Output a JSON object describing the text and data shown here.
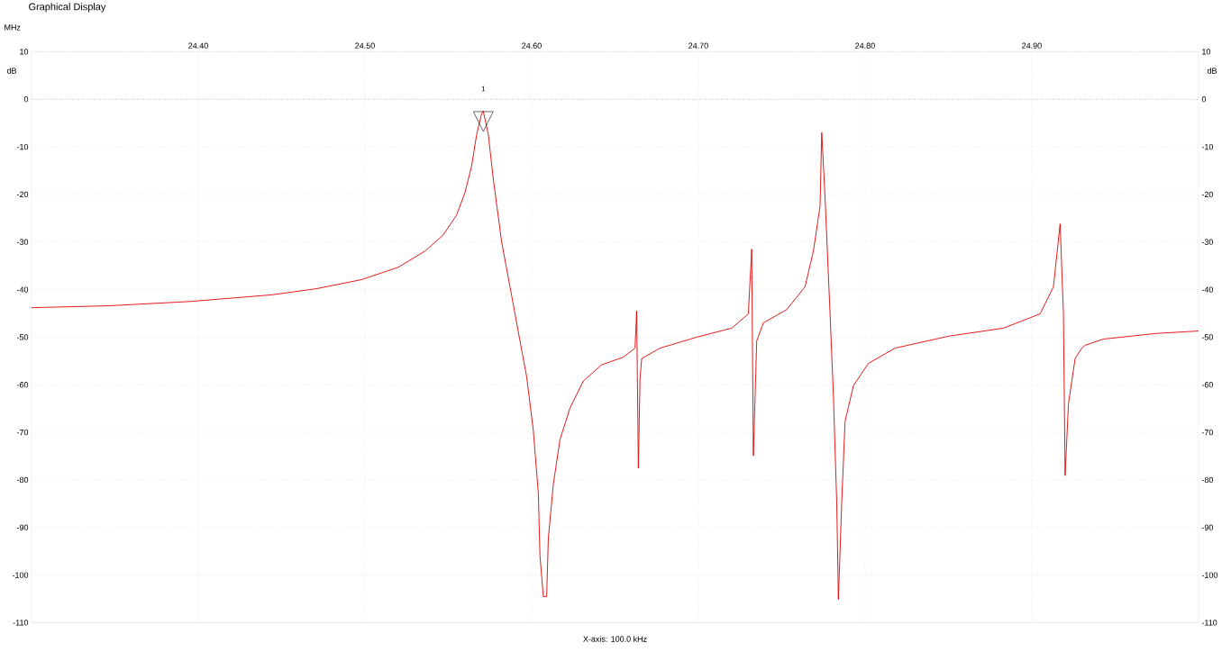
{
  "chart_data": {
    "type": "line",
    "title": "Graphical Display",
    "xlabel": "MHz",
    "ylabel": "dB",
    "y2label": "dB",
    "x": [
      24.3,
      24.346,
      24.395,
      24.444,
      24.471,
      24.498,
      24.52,
      24.536,
      24.547,
      24.555,
      24.56,
      24.564,
      24.567,
      24.57,
      24.571,
      24.574,
      24.577,
      24.582,
      24.588,
      24.593,
      24.597,
      24.601,
      24.604,
      24.605,
      24.607,
      24.609,
      24.61,
      24.613,
      24.617,
      24.623,
      24.631,
      24.642,
      24.655,
      24.662,
      24.663,
      24.664,
      24.665,
      24.666,
      24.677,
      24.699,
      24.72,
      24.73,
      24.732,
      24.733,
      24.735,
      24.739,
      24.753,
      24.764,
      24.769,
      24.773,
      24.774,
      24.776,
      24.779,
      24.781,
      24.783,
      24.784,
      24.786,
      24.788,
      24.793,
      24.802,
      24.818,
      24.85,
      24.883,
      24.905,
      24.913,
      24.917,
      24.919,
      24.92,
      24.922,
      24.926,
      24.93,
      24.932,
      24.943,
      24.975,
      25.0
    ],
    "series": [
      {
        "color": "#e00000",
        "values": [
          -43.8,
          -43.4,
          -42.5,
          -41.1,
          -39.8,
          -37.9,
          -35.3,
          -31.9,
          -28.5,
          -24.3,
          -19.6,
          -14.0,
          -7.4,
          -3.0,
          -2.5,
          -7.4,
          -16.8,
          -30.0,
          -41.3,
          -50.8,
          -58.3,
          -69.6,
          -82.8,
          -96.0,
          -104.5,
          -104.5,
          -92.3,
          -80.9,
          -71.5,
          -64.9,
          -59.2,
          -55.8,
          -54.2,
          -52.3,
          -44.5,
          -77.5,
          -58.7,
          -54.5,
          -52.3,
          -50.0,
          -48.1,
          -45.1,
          -31.5,
          -74.9,
          -50.8,
          -47.0,
          -44.2,
          -39.4,
          -31.9,
          -22.5,
          -7.0,
          -20.6,
          -45.1,
          -62.1,
          -84.7,
          -105.1,
          -84.7,
          -67.7,
          -60.2,
          -55.5,
          -52.3,
          -49.8,
          -48.1,
          -45.1,
          -39.4,
          -26.2,
          -45.1,
          -79.1,
          -64.0,
          -54.5,
          -52.3,
          -51.7,
          -50.4,
          -49.2,
          -48.7
        ]
      }
    ],
    "xlim": [
      24.3,
      25.0
    ],
    "xticks": [
      {
        "value": 24.4,
        "label": "24.40"
      },
      {
        "value": 24.5,
        "label": "24.50"
      },
      {
        "value": 24.6,
        "label": "24.60"
      },
      {
        "value": 24.7,
        "label": "24.70"
      },
      {
        "value": 24.8,
        "label": "24.80"
      },
      {
        "value": 24.9,
        "label": "24.90"
      }
    ],
    "ylim": [
      -110,
      10
    ],
    "yticks": [
      -110,
      -100,
      -90,
      -80,
      -70,
      -60,
      -50,
      -40,
      -30,
      -20,
      -10,
      0,
      10
    ],
    "y2lim": [
      -110,
      10
    ],
    "y2ticks": [
      -110,
      -100,
      -90,
      -80,
      -70,
      -60,
      -50,
      -40,
      -30,
      -20,
      -10,
      0,
      10
    ],
    "ref_lines": [
      {
        "axis": "y",
        "value": 0,
        "color": "#000000",
        "line_style": "dotted"
      }
    ],
    "annotations": [
      "X-axis: 100.0 kHz",
      "1"
    ],
    "grid": true,
    "line_style": "solid"
  }
}
